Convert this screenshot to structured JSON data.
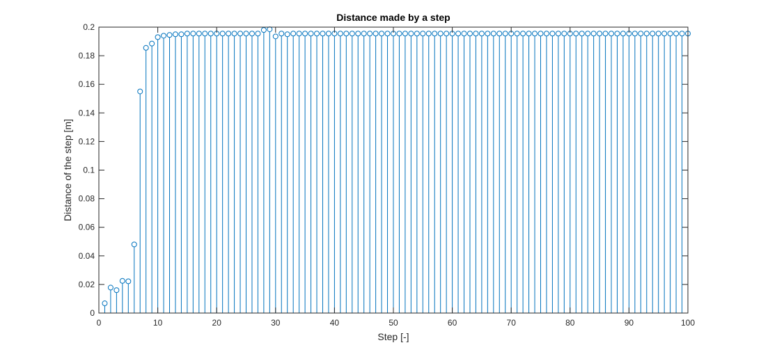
{
  "chart_data": {
    "type": "stem",
    "title": "Distance made by a step",
    "xlabel": "Step [-]",
    "ylabel": "Distance of the step [m]",
    "xlim": [
      0,
      100
    ],
    "ylim": [
      0,
      0.2
    ],
    "grid": false,
    "xticks": [
      0,
      10,
      20,
      30,
      40,
      50,
      60,
      70,
      80,
      90,
      100
    ],
    "xtick_labels": [
      "0",
      "10",
      "20",
      "30",
      "40",
      "50",
      "60",
      "70",
      "80",
      "90",
      "100"
    ],
    "yticks": [
      0,
      0.02,
      0.04,
      0.06,
      0.08,
      0.1,
      0.12,
      0.14,
      0.16,
      0.18,
      0.2
    ],
    "ytick_labels": [
      "0",
      "0.02",
      "0.04",
      "0.06",
      "0.08",
      "0.1",
      "0.12",
      "0.14",
      "0.16",
      "0.18",
      "0.2"
    ],
    "color": "#0072BD",
    "series": [
      {
        "x": [
          1,
          2,
          3,
          4,
          5,
          6,
          7,
          8,
          9,
          10,
          11,
          12,
          13,
          14,
          15,
          16,
          17,
          18,
          19,
          20,
          21,
          22,
          23,
          24,
          25,
          26,
          27,
          28,
          29,
          30,
          31,
          32,
          33,
          34,
          35,
          36,
          37,
          38,
          39,
          40,
          41,
          42,
          43,
          44,
          45,
          46,
          47,
          48,
          49,
          50,
          51,
          52,
          53,
          54,
          55,
          56,
          57,
          58,
          59,
          60,
          61,
          62,
          63,
          64,
          65,
          66,
          67,
          68,
          69,
          70,
          71,
          72,
          73,
          74,
          75,
          76,
          77,
          78,
          79,
          80,
          81,
          82,
          83,
          84,
          85,
          86,
          87,
          88,
          89,
          90,
          91,
          92,
          93,
          94,
          95,
          96,
          97,
          98,
          99,
          100
        ],
        "y": [
          0.0068,
          0.0178,
          0.016,
          0.0225,
          0.0222,
          0.048,
          0.155,
          0.1855,
          0.1885,
          0.193,
          0.194,
          0.1945,
          0.195,
          0.195,
          0.1955,
          0.1955,
          0.1955,
          0.1955,
          0.1955,
          0.1955,
          0.1955,
          0.1955,
          0.1955,
          0.1955,
          0.1955,
          0.1955,
          0.1955,
          0.198,
          0.1985,
          0.1935,
          0.1955,
          0.195,
          0.1955,
          0.1955,
          0.1955,
          0.1955,
          0.1955,
          0.1955,
          0.1955,
          0.1955,
          0.1955,
          0.1955,
          0.1955,
          0.1955,
          0.1955,
          0.1955,
          0.1955,
          0.1955,
          0.1955,
          0.1955,
          0.1955,
          0.1955,
          0.1955,
          0.1955,
          0.1955,
          0.1955,
          0.1955,
          0.1955,
          0.1955,
          0.1955,
          0.1955,
          0.1955,
          0.1955,
          0.1955,
          0.1955,
          0.1955,
          0.1955,
          0.1955,
          0.1955,
          0.1955,
          0.1955,
          0.1955,
          0.1955,
          0.1955,
          0.1955,
          0.1955,
          0.1955,
          0.1955,
          0.1955,
          0.1955,
          0.1955,
          0.1955,
          0.1955,
          0.1955,
          0.1955,
          0.1955,
          0.1955,
          0.1955,
          0.1955,
          0.1955,
          0.1955,
          0.1955,
          0.1955,
          0.1955,
          0.1955,
          0.1955,
          0.1955,
          0.1955,
          0.1955,
          0.1955
        ]
      }
    ]
  }
}
